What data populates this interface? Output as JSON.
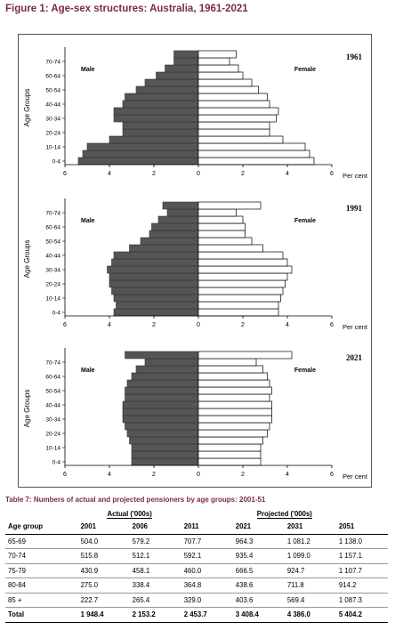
{
  "figure": {
    "title": "Figure 1: Age-sex structures: Australia, 1961-2021",
    "male_label": "Male",
    "female_label": "Female",
    "y_axis_label": "Age Groups",
    "x_unit_label": "Per cent",
    "x_tick_labels": [
      "6",
      "4",
      "2",
      "0",
      "2",
      "4",
      "6"
    ],
    "age_tick_labels": [
      "0-4",
      "10-14",
      "20-24",
      "30-34",
      "40-44",
      "50-54",
      "60-64",
      "70-74"
    ]
  },
  "chart_data": [
    {
      "type": "bar",
      "title": "1961",
      "xlabel": "Per cent",
      "ylabel": "Age Groups",
      "xlim": [
        -6,
        6
      ],
      "categories": [
        "0-4",
        "5-9",
        "10-14",
        "15-19",
        "20-24",
        "25-29",
        "30-34",
        "35-39",
        "40-44",
        "45-49",
        "50-54",
        "55-59",
        "60-64",
        "65-69",
        "70-74",
        "75+"
      ],
      "series": [
        {
          "name": "Male",
          "values": [
            5.4,
            5.2,
            5.0,
            4.0,
            3.4,
            3.4,
            3.8,
            3.8,
            3.4,
            3.3,
            2.8,
            2.4,
            1.9,
            1.5,
            1.1,
            1.1
          ]
        },
        {
          "name": "Female",
          "values": [
            5.2,
            5.0,
            4.8,
            3.8,
            3.2,
            3.2,
            3.5,
            3.6,
            3.2,
            3.1,
            2.7,
            2.4,
            2.0,
            1.8,
            1.4,
            1.7
          ]
        }
      ]
    },
    {
      "type": "bar",
      "title": "1991",
      "xlabel": "Per cent",
      "ylabel": "Age Groups",
      "xlim": [
        -6,
        6
      ],
      "categories": [
        "0-4",
        "5-9",
        "10-14",
        "15-19",
        "20-24",
        "25-29",
        "30-34",
        "35-39",
        "40-44",
        "45-49",
        "50-54",
        "55-59",
        "60-64",
        "65-69",
        "70-74",
        "75+"
      ],
      "series": [
        {
          "name": "Male",
          "values": [
            3.8,
            3.7,
            3.8,
            3.9,
            4.0,
            4.0,
            4.1,
            3.9,
            3.8,
            3.1,
            2.6,
            2.2,
            2.1,
            1.8,
            1.4,
            1.6
          ]
        },
        {
          "name": "Female",
          "values": [
            3.6,
            3.6,
            3.7,
            3.8,
            3.9,
            4.0,
            4.2,
            4.0,
            3.8,
            2.9,
            2.4,
            2.1,
            2.1,
            2.0,
            1.7,
            2.8
          ]
        }
      ]
    },
    {
      "type": "bar",
      "title": "2021",
      "xlabel": "Per cent",
      "ylabel": "Age Groups",
      "xlim": [
        -6,
        6
      ],
      "categories": [
        "0-4",
        "5-9",
        "10-14",
        "15-19",
        "20-24",
        "25-29",
        "30-34",
        "35-39",
        "40-44",
        "45-49",
        "50-54",
        "55-59",
        "60-64",
        "65-69",
        "70-74",
        "75+"
      ],
      "series": [
        {
          "name": "Male",
          "values": [
            3.0,
            3.0,
            3.0,
            3.1,
            3.2,
            3.3,
            3.4,
            3.4,
            3.4,
            3.3,
            3.3,
            3.2,
            3.0,
            2.8,
            2.4,
            3.3
          ]
        },
        {
          "name": "Female",
          "values": [
            2.8,
            2.8,
            2.8,
            2.9,
            3.1,
            3.2,
            3.3,
            3.3,
            3.3,
            3.2,
            3.3,
            3.2,
            3.1,
            2.9,
            2.6,
            4.2
          ]
        }
      ]
    }
  ],
  "table": {
    "title": "Table 7: Numbers of actual and projected pensioners by age groups: 2001-51",
    "group_actual": "Actual ('000s)",
    "group_projected": "Projected ('000s)",
    "columns": [
      "Age group",
      "2001",
      "2006",
      "2011",
      "2021",
      "2031",
      "2051"
    ],
    "rows": [
      [
        "65-69",
        "504.0",
        "579.2",
        "707.7",
        "964.3",
        "1 081.2",
        "1 138.0"
      ],
      [
        "70-74",
        "515.8",
        "512.1",
        "592.1",
        "935.4",
        "1 099.0",
        "1 157.1"
      ],
      [
        "75-79",
        "430.9",
        "458.1",
        "460.0",
        "666.5",
        "924.7",
        "1 107.7"
      ],
      [
        "80-84",
        "275.0",
        "338.4",
        "364.8",
        "438.6",
        "711.8",
        "914.2"
      ],
      [
        "85 +",
        "222.7",
        "265.4",
        "329.0",
        "403.6",
        "569.4",
        "1 087.3"
      ]
    ],
    "total": [
      "Total",
      "1 948.4",
      "2 153.2",
      "2 453.7",
      "3 408.4",
      "4 386.0",
      "5 404.2"
    ]
  }
}
